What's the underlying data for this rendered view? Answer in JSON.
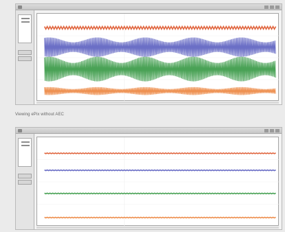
{
  "figure_caption": "Viewing ePix without AEC",
  "colors": {
    "trace_1": "#e0653e",
    "trace_2": "#6b6fc6",
    "trace_3": "#4aa256",
    "trace_4": "#ee9050",
    "background": "#ebebeb"
  },
  "windows": [
    {
      "name": "with-noise",
      "traces": [
        {
          "color": "#e0653e",
          "level": 0.16,
          "amplitude": 0.015
        },
        {
          "color": "#6b6fc6",
          "level": 0.38,
          "amplitude": 0.11
        },
        {
          "color": "#4aa256",
          "level": 0.63,
          "amplitude": 0.14
        },
        {
          "color": "#ee9050",
          "level": 0.88,
          "amplitude": 0.045
        }
      ]
    },
    {
      "name": "without-noise",
      "traces": [
        {
          "color": "#e0653e",
          "level": 0.18,
          "amplitude": 0.004
        },
        {
          "color": "#6b6fc6",
          "level": 0.37,
          "amplitude": 0.004
        },
        {
          "color": "#4aa256",
          "level": 0.63,
          "amplitude": 0.004
        },
        {
          "color": "#ee9050",
          "level": 0.9,
          "amplitude": 0.004
        }
      ]
    }
  ]
}
